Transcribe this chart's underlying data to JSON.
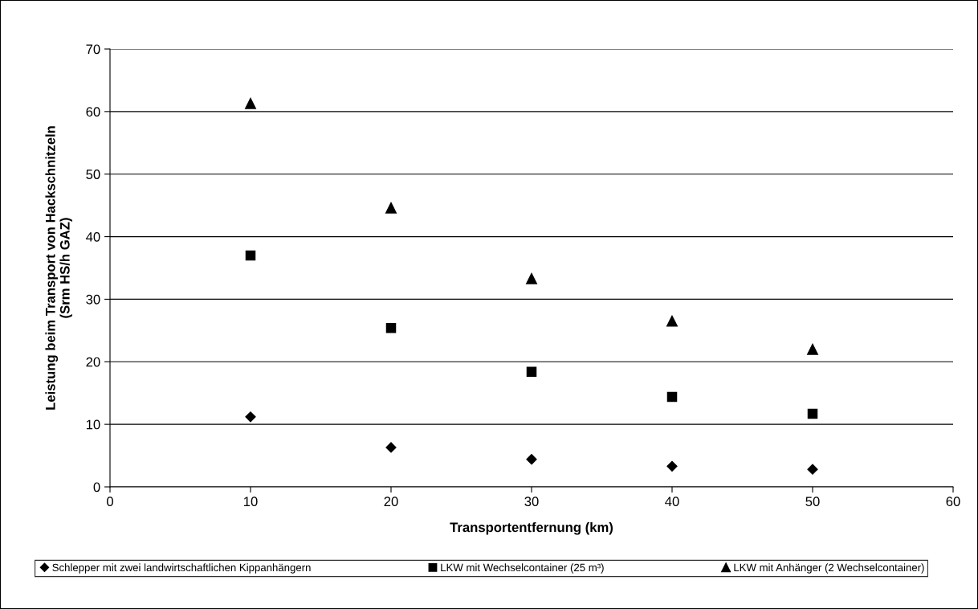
{
  "chart_data": {
    "type": "scatter",
    "xlabel": "Transportentfernung (km)",
    "ylabel": "Leistung beim Transport von Hackschnitzeln\n(Srm HS/h GAZ)",
    "x": [
      10,
      20,
      30,
      40,
      50
    ],
    "series": [
      {
        "name": "Schlepper mit zwei landwirtschaftlichen Kippanhängern",
        "color": "#000000",
        "marker": "diamond",
        "values": [
          11.2,
          6.3,
          4.4,
          3.3,
          2.8
        ]
      },
      {
        "name": "LKW mit Wechselcontainer (25 m³)",
        "color": "#000000",
        "marker": "square",
        "values": [
          37.0,
          25.4,
          18.4,
          14.4,
          11.7
        ]
      },
      {
        "name": "LKW mit Anhänger (2 Wechselcontainer)",
        "color": "#000000",
        "marker": "triangle",
        "values": [
          61.3,
          44.6,
          33.3,
          26.5,
          22.0
        ]
      }
    ],
    "xlim": [
      0,
      60
    ],
    "xticks": [
      0,
      10,
      20,
      30,
      40,
      50,
      60
    ],
    "ylim": [
      0,
      70
    ],
    "yticks": [
      0,
      10,
      20,
      30,
      40,
      50,
      60,
      70
    ],
    "grid": "y",
    "legend": "bottom"
  }
}
